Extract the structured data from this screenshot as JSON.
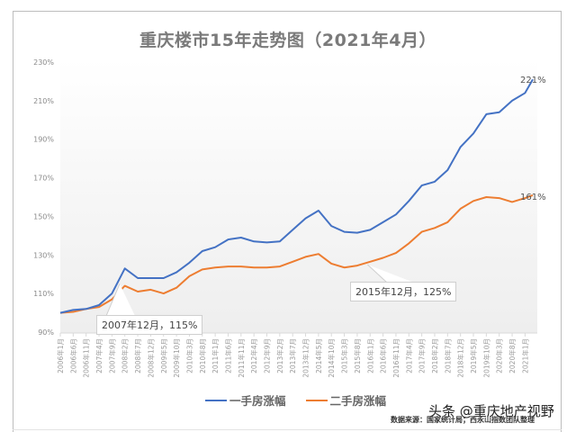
{
  "title": "重庆楼市15年走势图（2021年4月）",
  "legend": {
    "new_home": "一手房涨幅",
    "second_hand": "二手房涨幅"
  },
  "source_note": "数据来源：国家统计局；西永山指数团队整理",
  "watermark": "头条 @重庆地产视野",
  "annotations": {
    "peak_2007": "2007年12月，115%",
    "low_2015": "2015年12月，125%",
    "end_new": "221%",
    "end_second": "161%"
  },
  "colors": {
    "new_home": "#4472c4",
    "second_hand": "#ed7d31",
    "title": "#7a7a7a"
  },
  "chart_data": {
    "type": "line",
    "title": "重庆楼市15年走势图（2021年4月）",
    "xlabel": "",
    "ylabel": "",
    "ylim": [
      90,
      230
    ],
    "yticks": [
      "90%",
      "110%",
      "130%",
      "150%",
      "170%",
      "190%",
      "210%",
      "230%"
    ],
    "grid": false,
    "legend_position": "bottom",
    "x": [
      "2006年1月",
      "2006年6月",
      "2006年11月",
      "2007年4月",
      "2007年9月",
      "2008年2月",
      "2008年7月",
      "2008年12月",
      "2009年5月",
      "2009年10月",
      "2010年3月",
      "2010年8月",
      "2011年1月",
      "2011年6月",
      "2011年11月",
      "2012年4月",
      "2012年9月",
      "2013年2月",
      "2013年7月",
      "2013年12月",
      "2014年5月",
      "2014年10月",
      "2015年3月",
      "2015年8月",
      "2016年1月",
      "2016年6月",
      "2016年11月",
      "2017年4月",
      "2017年9月",
      "2018年2月",
      "2018年7月",
      "2018年12月",
      "2019年5月",
      "2019年10月",
      "2020年3月",
      "2020年8月",
      "2021年1月",
      "2021年4月"
    ],
    "series": [
      {
        "name": "一手房涨幅",
        "values": [
          100,
          101.5,
          102,
          104,
          110,
          123,
          118,
          118,
          118,
          121,
          126,
          132,
          134,
          138,
          139,
          137,
          136.5,
          137,
          143,
          149,
          153,
          145,
          142,
          141.5,
          143,
          147,
          151,
          158,
          166,
          168,
          174,
          186,
          193,
          203,
          204,
          210,
          214,
          221
        ]
      },
      {
        "name": "二手房涨幅",
        "values": [
          100,
          100.5,
          102,
          103,
          107,
          114,
          111,
          112,
          110,
          113,
          119,
          122.5,
          123.5,
          124,
          124,
          123.5,
          123.5,
          124,
          126.5,
          129,
          130.5,
          125.5,
          123.5,
          124.5,
          126.5,
          128.5,
          131,
          136,
          142,
          144,
          147,
          154,
          158,
          160,
          159.5,
          157.5,
          159.5,
          161
        ]
      }
    ],
    "annotations": [
      {
        "x": "2007年12月",
        "series": "二手房涨幅",
        "value": 115,
        "text": "2007年12月，115%"
      },
      {
        "x": "2015年12月",
        "series": "二手房涨幅",
        "value": 125,
        "text": "2015年12月，125%"
      },
      {
        "x": "2021年4月",
        "series": "一手房涨幅",
        "value": 221,
        "text": "221%"
      },
      {
        "x": "2021年4月",
        "series": "二手房涨幅",
        "value": 161,
        "text": "161%"
      }
    ]
  }
}
